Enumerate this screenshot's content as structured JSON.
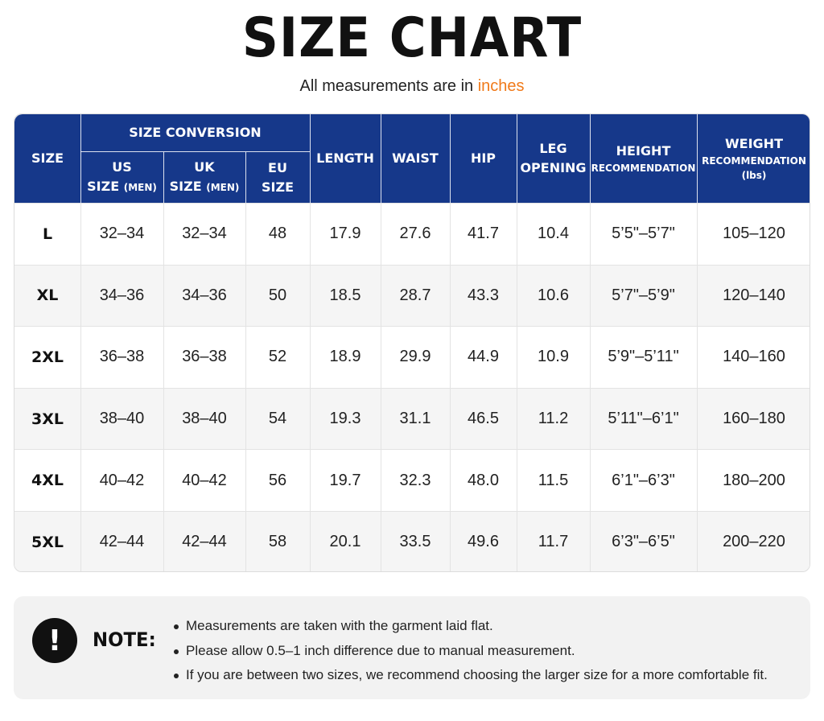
{
  "title": "SIZE CHART",
  "subtitle": {
    "prefix": "All measurements are in ",
    "accent": "inches",
    "accent_color": "#f07a1a"
  },
  "table": {
    "header_color": "#16388a",
    "headers": {
      "size": "SIZE",
      "size_conversion": "SIZE CONVERSION",
      "us_top": "US",
      "us_bottom": "SIZE",
      "us_small": "(MEN)",
      "uk_top": "UK",
      "uk_bottom": "SIZE",
      "uk_small": "(MEN)",
      "eu_top": "EU",
      "eu_bottom": "SIZE",
      "length": "LENGTH",
      "waist": "WAIST",
      "hip": "HIP",
      "leg_top": "LEG",
      "leg_bottom": "OPENING",
      "height_top": "HEIGHT",
      "height_bottom": "RECOMMENDATION",
      "weight_top": "WEIGHT",
      "weight_bottom": "RECOMMENDATION",
      "weight_unit": "(lbs)"
    },
    "rows": [
      [
        "L",
        "32–34",
        "32–34",
        "48",
        "17.9",
        "27.6",
        "41.7",
        "10.4",
        "5’5\"–5’7\"",
        "105–120"
      ],
      [
        "XL",
        "34–36",
        "34–36",
        "50",
        "18.5",
        "28.7",
        "43.3",
        "10.6",
        "5’7\"–5’9\"",
        "120–140"
      ],
      [
        "2XL",
        "36–38",
        "36–38",
        "52",
        "18.9",
        "29.9",
        "44.9",
        "10.9",
        "5’9\"–5’11\"",
        "140–160"
      ],
      [
        "3XL",
        "38–40",
        "38–40",
        "54",
        "19.3",
        "31.1",
        "46.5",
        "11.2",
        "5’11\"–6’1\"",
        "160–180"
      ],
      [
        "4XL",
        "40–42",
        "40–42",
        "56",
        "19.7",
        "32.3",
        "48.0",
        "11.5",
        "6’1\"–6’3\"",
        "180–200"
      ],
      [
        "5XL",
        "42–44",
        "42–44",
        "58",
        "20.1",
        "33.5",
        "49.6",
        "11.7",
        "6’3\"–6’5\"",
        "200–220"
      ]
    ]
  },
  "note": {
    "icon": "exclamation-icon",
    "label": "NOTE:",
    "items": [
      "Measurements are taken with the garment laid flat.",
      "Please allow 0.5–1 inch difference due to manual measurement.",
      "If you are between two sizes, we recommend choosing the larger size for a more comfortable fit."
    ]
  }
}
